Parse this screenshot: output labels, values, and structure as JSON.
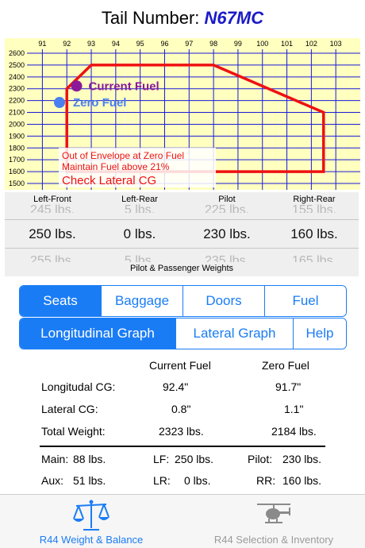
{
  "header": {
    "prefix": "Tail Number:",
    "tail_number": "N67MC"
  },
  "chart_data": {
    "type": "scatter",
    "x_ticks": [
      "91",
      "92",
      "93",
      "94",
      "95",
      "96",
      "97",
      "98",
      "99",
      "100",
      "101",
      "102",
      "103"
    ],
    "y_ticks": [
      "2600",
      "2500",
      "2400",
      "2300",
      "2200",
      "2100",
      "2000",
      "1900",
      "1800",
      "1700",
      "1600",
      "1500"
    ],
    "xlim": [
      90.5,
      104.0
    ],
    "ylim": [
      1450,
      2650
    ],
    "envelope": [
      [
        92.0,
        1600
      ],
      [
        92.0,
        2300
      ],
      [
        93.0,
        2500
      ],
      [
        98.0,
        2500
      ],
      [
        102.5,
        2100
      ],
      [
        102.5,
        1600
      ]
    ],
    "points": [
      {
        "name": "Current Fuel",
        "x": 92.4,
        "y": 2323,
        "color": "#8a1a9a"
      },
      {
        "name": "Zero Fuel",
        "x": 91.7,
        "y": 2184,
        "color": "#4a7ff0"
      }
    ],
    "warnings": [
      "Out of Envelope at Zero Fuel",
      "Maintain Fuel above 21%",
      "Check Lateral CG"
    ],
    "colors": {
      "background": "#ffffc0",
      "grid": "#1a1ad8",
      "envelope": "#ee1111"
    }
  },
  "weights": {
    "headers": [
      "Left-Front",
      "Left-Rear",
      "Pilot",
      "Right-Rear"
    ],
    "prev": [
      "245 lbs.",
      "5 lbs.",
      "225 lbs.",
      "155 lbs."
    ],
    "selected": [
      "250 lbs.",
      "0 lbs.",
      "230 lbs.",
      "160 lbs."
    ],
    "next": [
      "255 lbs.",
      "5 lbs.",
      "235 lbs.",
      "165 lbs."
    ],
    "caption": "Pilot & Passenger Weights"
  },
  "segments1": [
    "Seats",
    "Baggage",
    "Doors",
    "Fuel"
  ],
  "segments2": [
    "Longitudinal Graph",
    "Lateral Graph",
    "Help"
  ],
  "summary": {
    "col_current": "Current Fuel",
    "col_zero": "Zero Fuel",
    "rows": [
      {
        "label": "Longitudal CG:",
        "current": "92.4\"",
        "zero": "91.7\""
      },
      {
        "label": "Lateral CG:",
        "current": "0.8\"",
        "zero": "1.1\""
      },
      {
        "label": "Total Weight:",
        "current": "2323 lbs.",
        "zero": "2184 lbs."
      }
    ]
  },
  "stations": {
    "main_label": "Main:",
    "main_value": "88 lbs.",
    "lf_label": "LF:",
    "lf_value": "250 lbs.",
    "pilot_label": "Pilot:",
    "pilot_value": "230 lbs.",
    "aux_label": "Aux:",
    "aux_value": "51 lbs.",
    "lr_label": "LR:",
    "lr_value": "0 lbs.",
    "rr_label": "RR:",
    "rr_value": "160 lbs."
  },
  "tabs": {
    "weight_balance": "R44 Weight & Balance",
    "selection": "R44 Selection & Inventory",
    "weight_icon": "balance-scale-icon",
    "selection_icon": "helicopter-icon"
  }
}
